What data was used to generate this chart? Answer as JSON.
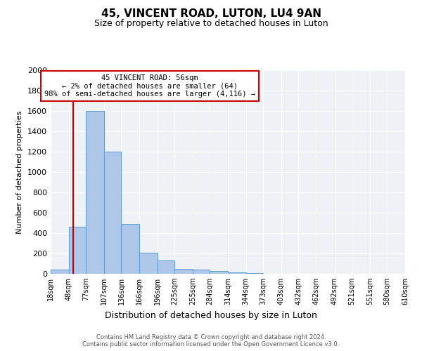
{
  "title_line1": "45, VINCENT ROAD, LUTON, LU4 9AN",
  "title_line2": "Size of property relative to detached houses in Luton",
  "xlabel": "Distribution of detached houses by size in Luton",
  "ylabel": "Number of detached properties",
  "footnote": "Contains HM Land Registry data © Crown copyright and database right 2024.\nContains public sector information licensed under the Open Government Licence v3.0.",
  "bar_edges": [
    18,
    48,
    77,
    107,
    136,
    166,
    196,
    225,
    255,
    284,
    314,
    344,
    373,
    403,
    432,
    462,
    492,
    521,
    551,
    580,
    610
  ],
  "bar_heights": [
    40,
    460,
    1600,
    1200,
    490,
    210,
    130,
    50,
    40,
    25,
    15,
    5,
    0,
    0,
    0,
    0,
    0,
    0,
    0,
    0,
    0
  ],
  "bar_color": "#aec6e8",
  "bar_edge_color": "#5b9bd5",
  "property_size": 56,
  "annotation_line1": "45 VINCENT ROAD: 56sqm",
  "annotation_line2": "← 2% of detached houses are smaller (64)",
  "annotation_line3": "98% of semi-detached houses are larger (4,116) →",
  "red_line_color": "#cc0000",
  "annotation_box_color": "#cc0000",
  "ylim": [
    0,
    2000
  ],
  "yticks": [
    0,
    200,
    400,
    600,
    800,
    1000,
    1200,
    1400,
    1600,
    1800,
    2000
  ],
  "background_color": "#eef2f7",
  "grid_color": "#ffffff",
  "figsize": [
    6.0,
    5.0
  ],
  "dpi": 100
}
